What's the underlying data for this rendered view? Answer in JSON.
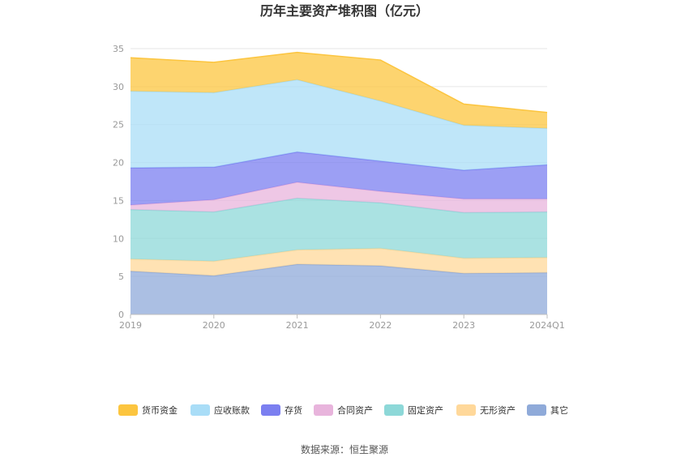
{
  "chart_data": {
    "type": "area",
    "stacked": true,
    "title": "历年主要资产堆积图（亿元）",
    "categories": [
      "2019",
      "2020",
      "2021",
      "2022",
      "2023",
      "2024Q1"
    ],
    "ylim": [
      0,
      35
    ],
    "yticks": [
      0,
      5,
      10,
      15,
      20,
      25,
      30,
      35
    ],
    "grid": true,
    "legend_position": "bottom",
    "series": [
      {
        "name": "其它",
        "color": "#8faad9",
        "values": [
          5.7,
          5.1,
          6.6,
          6.4,
          5.4,
          5.5
        ]
      },
      {
        "name": "无形资产",
        "color": "#ffd89a",
        "values": [
          1.6,
          1.9,
          1.9,
          2.3,
          2.0,
          2.0
        ]
      },
      {
        "name": "固定资产",
        "color": "#8dd8d8",
        "values": [
          6.5,
          6.5,
          6.8,
          6.0,
          6.0,
          6.0
        ]
      },
      {
        "name": "合同资产",
        "color": "#e8b4dc",
        "values": [
          0.6,
          1.6,
          2.1,
          1.5,
          1.8,
          1.7
        ]
      },
      {
        "name": "存货",
        "color": "#7b7ff0",
        "values": [
          4.9,
          4.3,
          4.0,
          4.0,
          3.8,
          4.5
        ]
      },
      {
        "name": "应收账款",
        "color": "#a9ddf7",
        "values": [
          10.1,
          9.8,
          9.5,
          7.9,
          5.9,
          4.8
        ]
      },
      {
        "name": "货币资金",
        "color": "#fcc53f",
        "values": [
          4.4,
          4.0,
          3.6,
          5.4,
          2.8,
          2.1
        ]
      }
    ],
    "legend_order": [
      "货币资金",
      "应收账款",
      "存货",
      "合同资产",
      "固定资产",
      "无形资产",
      "其它"
    ]
  },
  "source": "数据来源：恒生聚源"
}
